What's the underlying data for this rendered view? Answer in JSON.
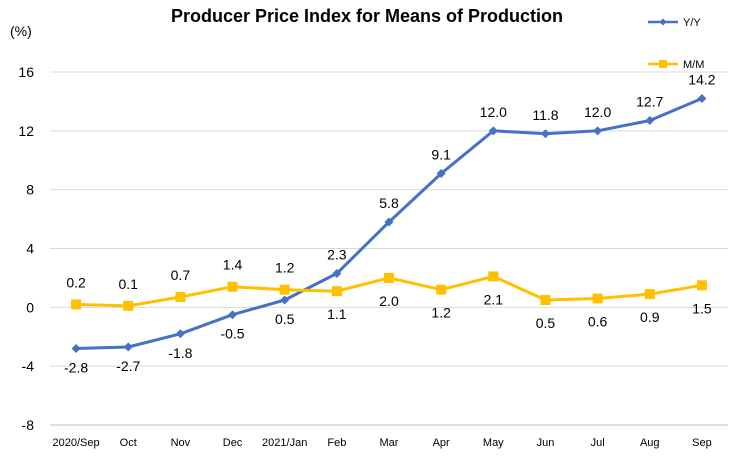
{
  "chart_data": {
    "type": "line",
    "title": "Producer Price Index for Means of Production",
    "y_unit_label": "(%)",
    "ylim": [
      -8,
      16
    ],
    "y_ticks": [
      -8,
      -4,
      0,
      4,
      8,
      12,
      16
    ],
    "grid": "horizontal",
    "legend_position": "top-right",
    "categories": [
      "2020/Sep",
      "Oct",
      "Nov",
      "Dec",
      "2021/Jan",
      "Feb",
      "Mar",
      "Apr",
      "May",
      "Jun",
      "Jul",
      "Aug",
      "Sep"
    ],
    "series": [
      {
        "name": "Y/Y",
        "color": "#4472C4",
        "marker": "diamond",
        "values": [
          -2.8,
          -2.7,
          -1.8,
          -0.5,
          0.5,
          2.3,
          5.8,
          9.1,
          12.0,
          11.8,
          12.0,
          12.7,
          14.2
        ],
        "labels": [
          "-2.8",
          "-2.7",
          "-1.8",
          "-0.5",
          "0.5",
          "2.3",
          "5.8",
          "9.1",
          "12.0",
          "11.8",
          "12.0",
          "12.7",
          "14.2"
        ]
      },
      {
        "name": "M/M",
        "color": "#FFC000",
        "marker": "square",
        "values": [
          0.2,
          0.1,
          0.7,
          1.4,
          1.2,
          1.1,
          2.0,
          1.2,
          2.1,
          0.5,
          0.6,
          0.9,
          1.5
        ],
        "labels": [
          "0.2",
          "0.1",
          "0.7",
          "1.4",
          "1.2",
          "1.1",
          "2.0",
          "1.2",
          "2.1",
          "0.5",
          "0.6",
          "0.9",
          "1.5"
        ]
      }
    ]
  }
}
